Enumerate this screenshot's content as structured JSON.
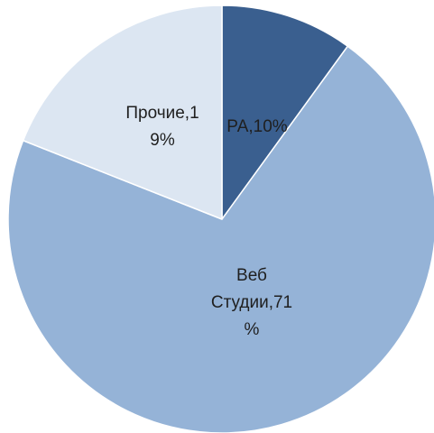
{
  "chart_data": {
    "type": "pie",
    "title": "",
    "legend": "none",
    "start_angle_deg": 0,
    "direction": "clockwise",
    "slices": [
      {
        "category": "РА",
        "value": 10,
        "color": "#3a5f8f",
        "label_lines": [
          "РА,10%"
        ]
      },
      {
        "category": "Веб Студии",
        "value": 71,
        "color": "#95b3d7",
        "label_lines": [
          "Веб",
          "Студии,71",
          "%"
        ]
      },
      {
        "category": "Прочие",
        "value": 19,
        "color": "#dce6f2",
        "label_lines": [
          "Прочие,1",
          "9%"
        ]
      }
    ]
  }
}
